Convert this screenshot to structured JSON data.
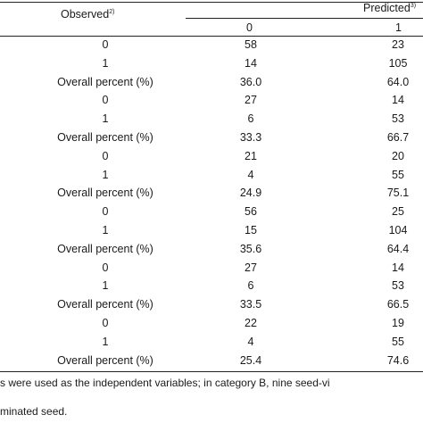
{
  "header": {
    "observed_label": "Observed",
    "observed_sup": "2)",
    "predicted_label": "Predicted",
    "predicted_sup": "3)",
    "col_0": "0",
    "col_1": "1"
  },
  "rows": [
    {
      "label": "0",
      "v0": "58",
      "v1": "23"
    },
    {
      "label": "1",
      "v0": "14",
      "v1": "105"
    },
    {
      "label": "Overall percent (%)",
      "v0": "36.0",
      "v1": "64.0"
    },
    {
      "label": "0",
      "v0": "27",
      "v1": "14"
    },
    {
      "label": "1",
      "v0": "6",
      "v1": "53"
    },
    {
      "label": "Overall percent (%)",
      "v0": "33.3",
      "v1": "66.7"
    },
    {
      "label": "0",
      "v0": "21",
      "v1": "20"
    },
    {
      "label": "1",
      "v0": "4",
      "v1": "55"
    },
    {
      "label": "Overall percent (%)",
      "v0": "24.9",
      "v1": "75.1"
    },
    {
      "label": "0",
      "v0": "56",
      "v1": "25"
    },
    {
      "label": "1",
      "v0": "15",
      "v1": "104"
    },
    {
      "label": "Overall percent (%)",
      "v0": "35.6",
      "v1": "64.4"
    },
    {
      "label": "0",
      "v0": "27",
      "v1": "14"
    },
    {
      "label": "1",
      "v0": "6",
      "v1": "53"
    },
    {
      "label": "Overall percent (%)",
      "v0": "33.5",
      "v1": "66.5"
    },
    {
      "label": "0",
      "v0": "22",
      "v1": "19"
    },
    {
      "label": "1",
      "v0": "4",
      "v1": "55"
    },
    {
      "label": "Overall percent (%)",
      "v0": "25.4",
      "v1": "74.6"
    }
  ],
  "footnotes": [
    "s were used as the independent variables; in category B, nine seed-vi",
    "minated seed."
  ]
}
